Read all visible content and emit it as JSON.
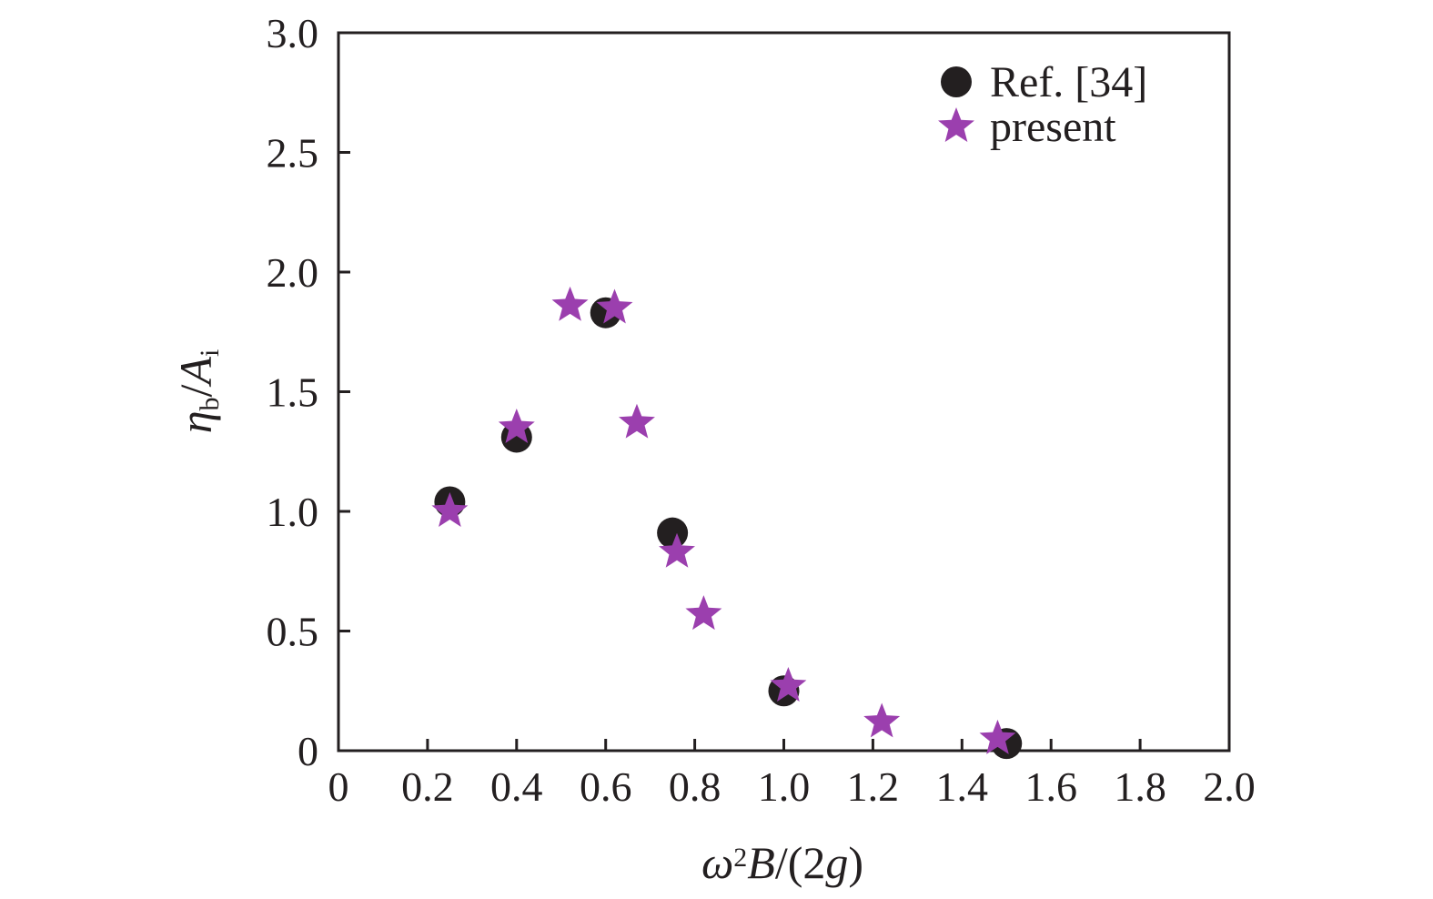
{
  "chart_data": {
    "type": "scatter",
    "title": "",
    "xlabel": "ω²B/(2g)",
    "xlabel_parts": [
      {
        "text": "ω",
        "italic": true,
        "sup": false,
        "sub": false
      },
      {
        "text": "2",
        "italic": false,
        "sup": true,
        "sub": false
      },
      {
        "text": "B",
        "italic": true,
        "sup": false,
        "sub": false
      },
      {
        "text": "/(2",
        "italic": false,
        "sup": false,
        "sub": false
      },
      {
        "text": "g",
        "italic": true,
        "sup": false,
        "sub": false
      },
      {
        "text": ")",
        "italic": false,
        "sup": false,
        "sub": false
      }
    ],
    "ylabel": "ηb/Ai",
    "ylabel_parts": [
      {
        "text": "η",
        "italic": true,
        "sup": false,
        "sub": false
      },
      {
        "text": "b",
        "italic": false,
        "sup": false,
        "sub": true
      },
      {
        "text": "/",
        "italic": false,
        "sup": false,
        "sub": false
      },
      {
        "text": "A",
        "italic": true,
        "sup": false,
        "sub": false
      },
      {
        "text": "i",
        "italic": false,
        "sup": false,
        "sub": true
      }
    ],
    "xlim": [
      0,
      2.0
    ],
    "ylim": [
      0,
      3.0
    ],
    "xticks": [
      "0",
      "0.2",
      "0.4",
      "0.6",
      "0.8",
      "1.0",
      "1.2",
      "1.4",
      "1.6",
      "1.8",
      "2.0"
    ],
    "yticks": [
      "0",
      "0.5",
      "1.0",
      "1.5",
      "2.0",
      "2.5",
      "3.0"
    ],
    "grid": false,
    "legend_position": "top-right",
    "series": [
      {
        "name": "Ref. [34]",
        "marker": "circle",
        "color": "#231f20",
        "points": [
          {
            "x": 0.25,
            "y": 1.04
          },
          {
            "x": 0.4,
            "y": 1.31
          },
          {
            "x": 0.6,
            "y": 1.83
          },
          {
            "x": 0.75,
            "y": 0.91
          },
          {
            "x": 1.0,
            "y": 0.25
          },
          {
            "x": 1.5,
            "y": 0.03
          }
        ]
      },
      {
        "name": "present",
        "marker": "star",
        "color": "#9b3fae",
        "points": [
          {
            "x": 0.25,
            "y": 1.0
          },
          {
            "x": 0.4,
            "y": 1.35
          },
          {
            "x": 0.52,
            "y": 1.86
          },
          {
            "x": 0.62,
            "y": 1.85
          },
          {
            "x": 0.67,
            "y": 1.37
          },
          {
            "x": 0.76,
            "y": 0.83
          },
          {
            "x": 0.82,
            "y": 0.57
          },
          {
            "x": 1.01,
            "y": 0.27
          },
          {
            "x": 1.22,
            "y": 0.12
          },
          {
            "x": 1.48,
            "y": 0.05
          }
        ]
      }
    ]
  }
}
